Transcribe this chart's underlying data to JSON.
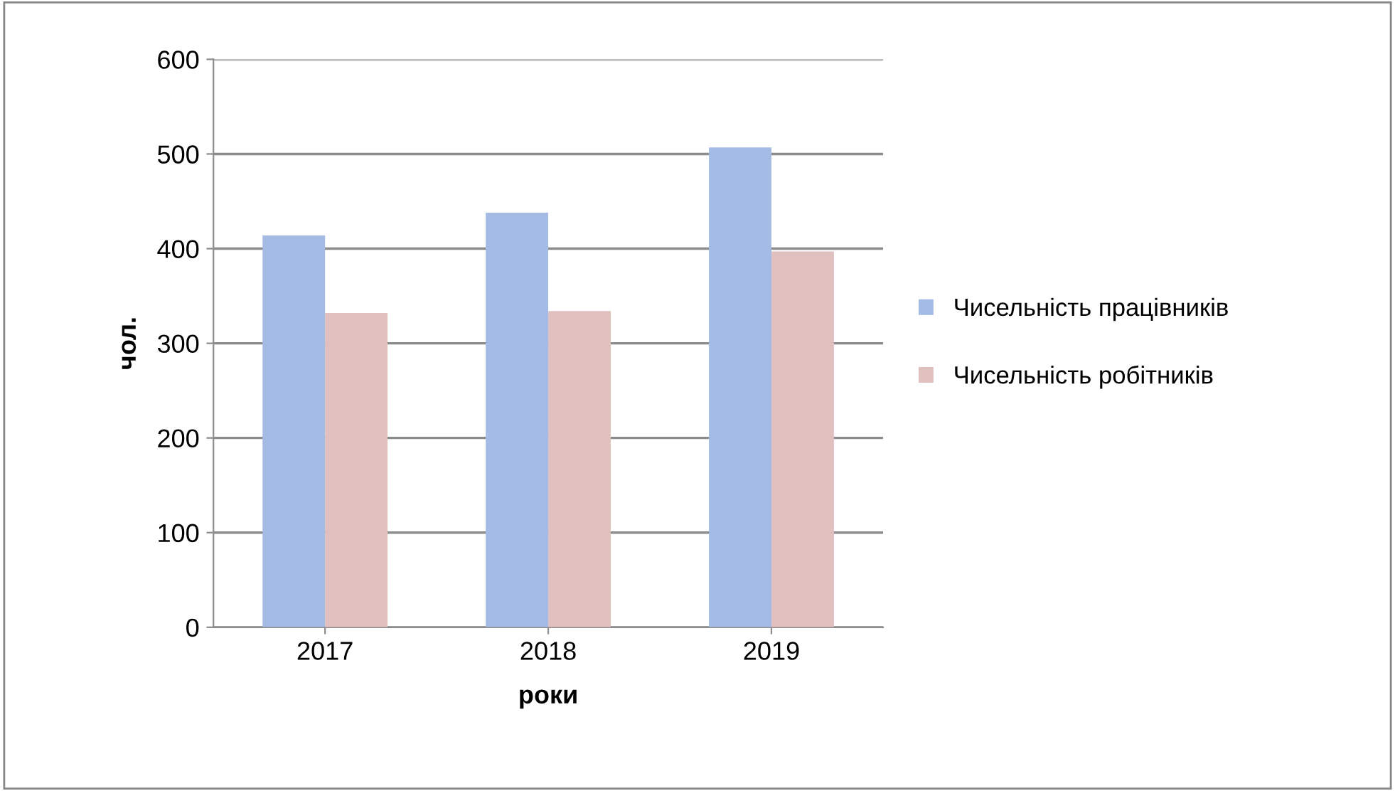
{
  "chart_data": {
    "type": "bar",
    "xlabel": "роки",
    "ylabel": "чол.",
    "categories": [
      "2017",
      "2018",
      "2019"
    ],
    "series": [
      {
        "name": "Чисельність працівників",
        "color": "#a4bbe6",
        "values": [
          414,
          438,
          507
        ]
      },
      {
        "name": "Чисельність робітників",
        "color": "#dfc0bf",
        "values": [
          332,
          334,
          397
        ]
      }
    ],
    "ylim": [
      0,
      600
    ],
    "yticks": [
      0,
      100,
      200,
      300,
      400,
      500,
      600
    ],
    "grid": "y",
    "legend": "right"
  }
}
